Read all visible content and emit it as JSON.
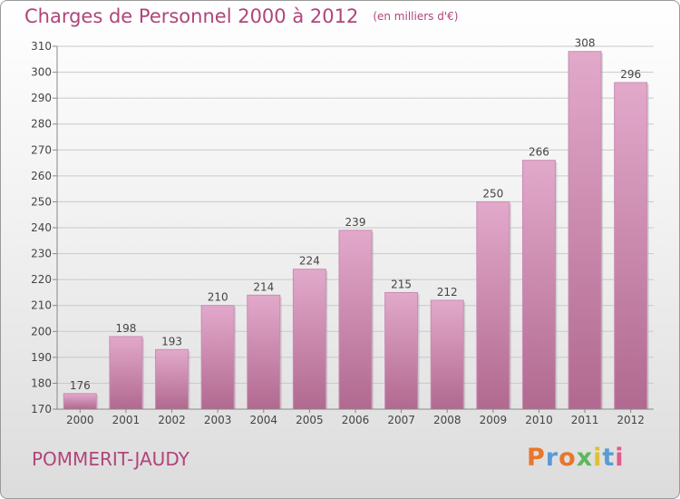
{
  "chart_data": {
    "type": "bar",
    "title": "Charges de Personnel 2000 à 2012",
    "subtitle": "(en milliers d'€)",
    "categories": [
      "2000",
      "2001",
      "2002",
      "2003",
      "2004",
      "2005",
      "2006",
      "2007",
      "2008",
      "2009",
      "2010",
      "2011",
      "2012"
    ],
    "values": [
      176,
      198,
      193,
      210,
      214,
      224,
      239,
      215,
      212,
      250,
      266,
      308,
      296
    ],
    "ylim": [
      170,
      310
    ],
    "yticks": [
      170,
      180,
      190,
      200,
      210,
      220,
      230,
      240,
      250,
      260,
      270,
      280,
      290,
      300,
      310
    ],
    "xlabel": "",
    "ylabel": "",
    "grid": true,
    "bar_color_top": "#e2a9cb",
    "bar_color_bottom": "#b1698f",
    "title_color": "#b0457a"
  },
  "footer": {
    "town": "POMMERIT-JAUDY",
    "logo": "Proxiti"
  },
  "colors": {
    "logo_letters": [
      "#e8762b",
      "#5a9bd5",
      "#e8762b",
      "#5cb85c",
      "#e0c030",
      "#5a9bd5",
      "#e05a8a"
    ]
  }
}
